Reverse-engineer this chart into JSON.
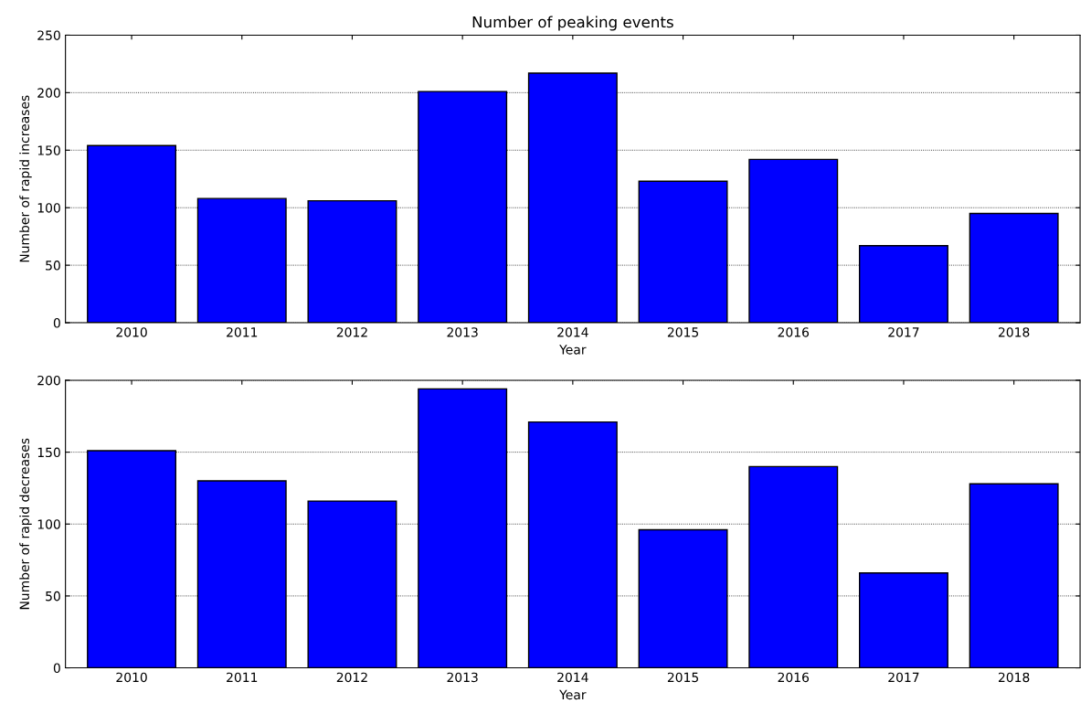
{
  "chart_data": [
    {
      "type": "bar",
      "title": "Number of peaking events",
      "xlabel": "Year",
      "ylabel": "Number of rapid increases",
      "categories": [
        "2010",
        "2011",
        "2012",
        "2013",
        "2014",
        "2015",
        "2016",
        "2017",
        "2018"
      ],
      "color": "#0000ff",
      "values": [
        154,
        108,
        106,
        201,
        217,
        123,
        142,
        67,
        95
      ],
      "ylim": [
        0,
        250
      ],
      "yticks": [
        0,
        50,
        100,
        150,
        200,
        250
      ],
      "grid": "y"
    },
    {
      "type": "bar",
      "xlabel": "Year",
      "ylabel": "Number of rapid decreases",
      "categories": [
        "2010",
        "2011",
        "2012",
        "2013",
        "2014",
        "2015",
        "2016",
        "2017",
        "2018"
      ],
      "color": "#0000ff",
      "values": [
        151,
        130,
        116,
        194,
        171,
        96,
        140,
        66,
        128
      ],
      "ylim": [
        0,
        200
      ],
      "yticks": [
        0,
        50,
        100,
        150,
        200
      ],
      "grid": "y"
    }
  ]
}
